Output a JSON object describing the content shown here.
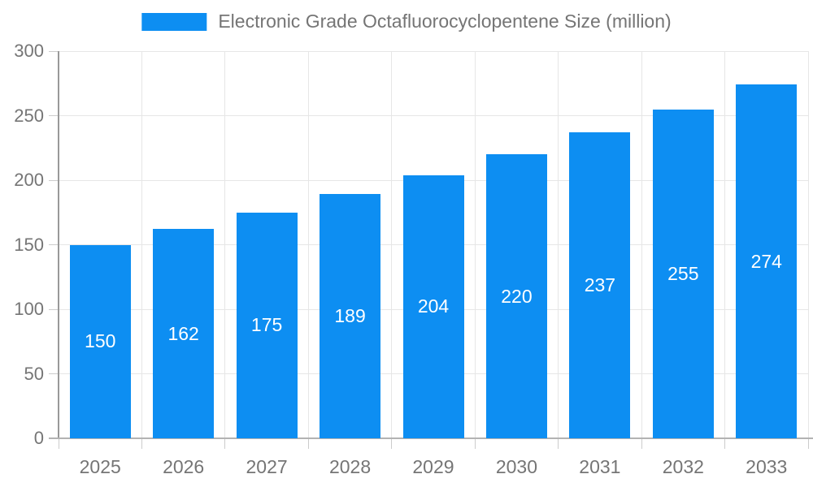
{
  "chart_data": {
    "type": "bar",
    "title": "Electronic Grade Octafluorocyclopentene Size (million)",
    "categories": [
      "2025",
      "2026",
      "2027",
      "2028",
      "2029",
      "2030",
      "2031",
      "2032",
      "2033"
    ],
    "values": [
      150,
      162,
      175,
      189,
      204,
      220,
      237,
      255,
      274
    ],
    "xlabel": "",
    "ylabel": "",
    "ylim": [
      0,
      300
    ],
    "yticks": [
      0,
      50,
      100,
      150,
      200,
      250,
      300
    ],
    "grid": true,
    "legend_position": "top-center",
    "value_labels": "centered-inside-bars",
    "colors": {
      "bar": "#0d8ef2",
      "value_label": "#ffffff",
      "axis_text": "#757575",
      "legend_text": "#757575",
      "y_axis_line": "#999999",
      "x_axis_line": "#b3b3b3",
      "gridline": "#e6e6e6",
      "tick": "#cccccc",
      "background": "#ffffff"
    }
  }
}
